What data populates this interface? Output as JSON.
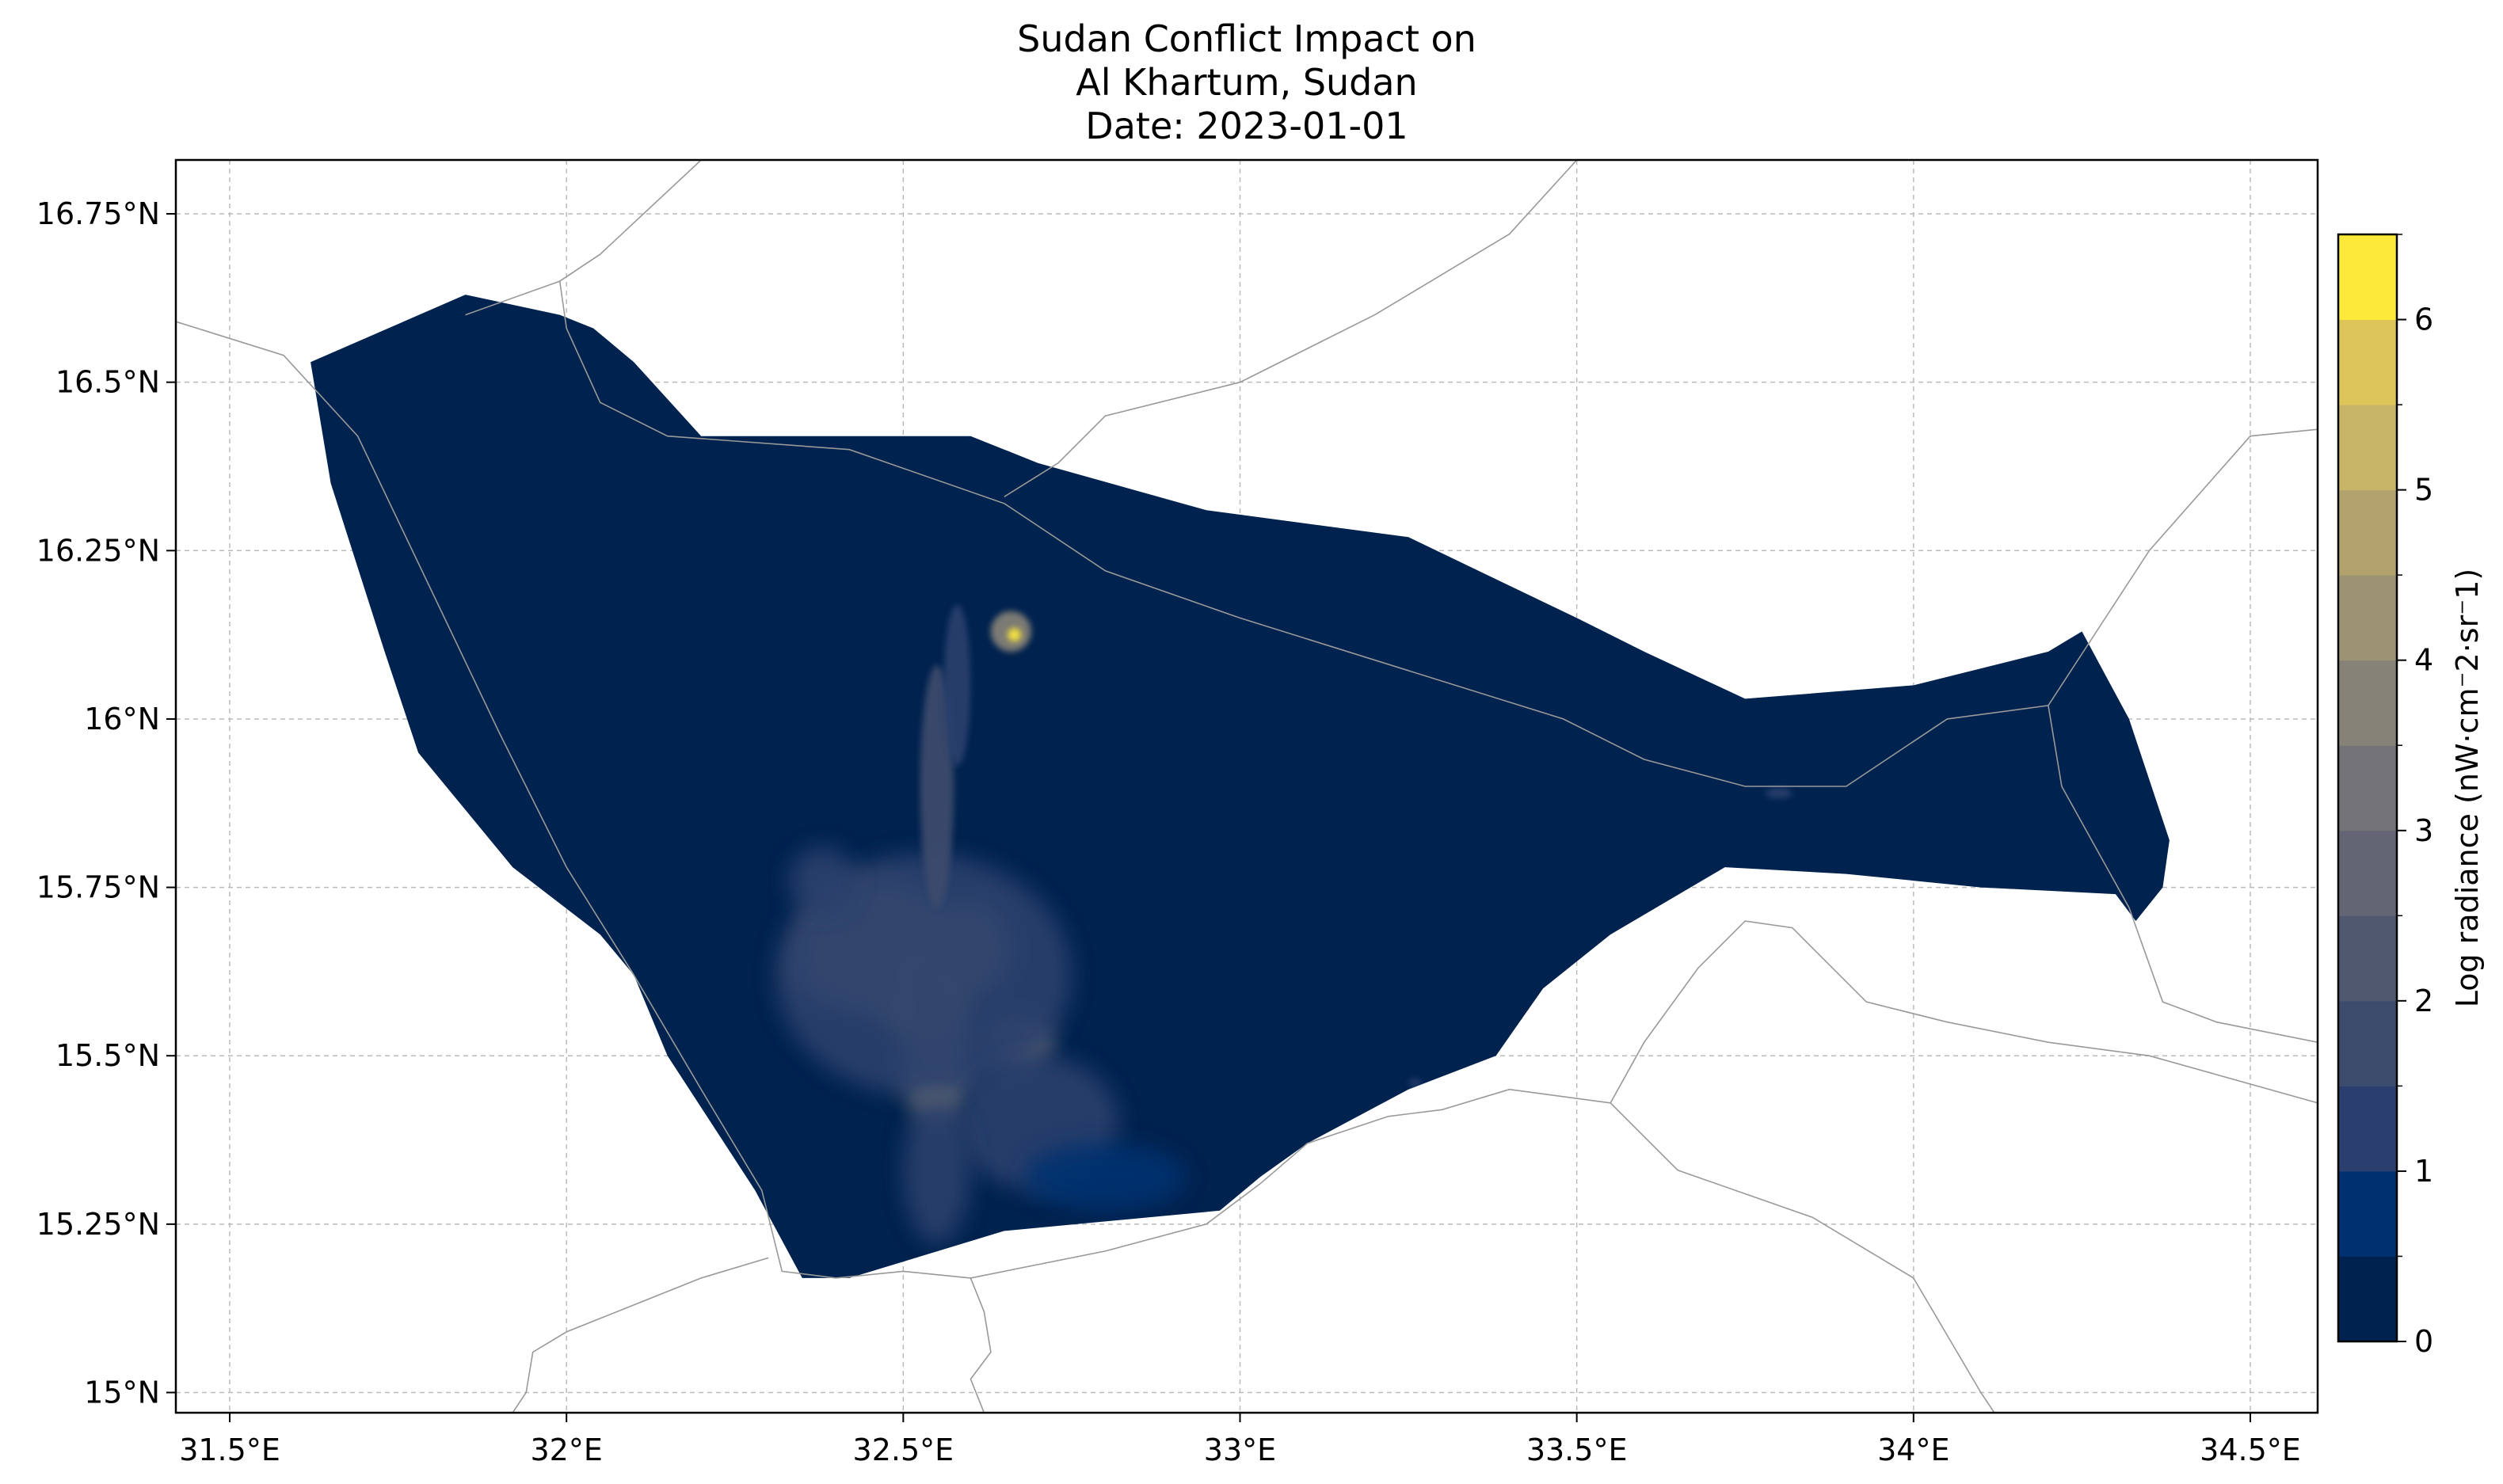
{
  "figure": {
    "title_lines": [
      "Sudan Conflict Impact on",
      "Al Khartum, Sudan",
      "Date: 2023-01-01"
    ]
  },
  "map": {
    "region": "Al Khartum, Sudan",
    "date": "2023-01-01",
    "lon_range": [
      31.42,
      34.6
    ],
    "lat_range": [
      14.97,
      16.83
    ],
    "grid": true,
    "x_ticks": [
      {
        "value": 31.5,
        "label": "31.5°E"
      },
      {
        "value": 32.0,
        "label": "32°E"
      },
      {
        "value": 32.5,
        "label": "32.5°E"
      },
      {
        "value": 33.0,
        "label": "33°E"
      },
      {
        "value": 33.5,
        "label": "33.5°E"
      },
      {
        "value": 34.0,
        "label": "34°E"
      },
      {
        "value": 34.5,
        "label": "34.5°E"
      }
    ],
    "y_ticks": [
      {
        "value": 16.75,
        "label": "16.75°N"
      },
      {
        "value": 16.5,
        "label": "16.5°N"
      },
      {
        "value": 16.25,
        "label": "16.25°N"
      },
      {
        "value": 16.0,
        "label": "16°N"
      },
      {
        "value": 15.75,
        "label": "15.75°N"
      },
      {
        "value": 15.5,
        "label": "15.5°N"
      },
      {
        "value": 15.25,
        "label": "15.25°N"
      },
      {
        "value": 15.0,
        "label": "15°N"
      }
    ],
    "colors": {
      "background_fill": "#00224e",
      "border_line": "#999999",
      "grid_line": "#bbbbbb"
    }
  },
  "colorbar": {
    "label": "Log radiance (nW·cm⁻2·sr⁻1)",
    "range": [
      0,
      6.5
    ],
    "ticks": [
      {
        "value": 0,
        "label": "0"
      },
      {
        "value": 1,
        "label": "1"
      },
      {
        "value": 2,
        "label": "2"
      },
      {
        "value": 3,
        "label": "3"
      },
      {
        "value": 4,
        "label": "4"
      },
      {
        "value": 5,
        "label": "5"
      },
      {
        "value": 6,
        "label": "6"
      }
    ],
    "bands": [
      {
        "min": 0.0,
        "max": 0.5,
        "color": "#00224e"
      },
      {
        "min": 0.5,
        "max": 1.0,
        "color": "#00306f"
      },
      {
        "min": 1.0,
        "max": 1.5,
        "color": "#2a3f6d"
      },
      {
        "min": 1.5,
        "max": 2.0,
        "color": "#3d4b6d"
      },
      {
        "min": 2.0,
        "max": 2.5,
        "color": "#4f586f"
      },
      {
        "min": 2.5,
        "max": 3.0,
        "color": "#636575"
      },
      {
        "min": 3.0,
        "max": 3.5,
        "color": "#737378"
      },
      {
        "min": 3.5,
        "max": 4.0,
        "color": "#878278"
      },
      {
        "min": 4.0,
        "max": 4.5,
        "color": "#9c9274"
      },
      {
        "min": 4.5,
        "max": 5.0,
        "color": "#b2a26d"
      },
      {
        "min": 5.0,
        "max": 5.5,
        "color": "#c8b466"
      },
      {
        "min": 5.5,
        "max": 6.0,
        "color": "#dec55a"
      },
      {
        "min": 6.0,
        "max": 6.5,
        "color": "#fde93a"
      }
    ]
  },
  "features": {
    "state_outline": [
      [
        31.62,
        16.53
      ],
      [
        31.85,
        16.63
      ],
      [
        31.99,
        16.6
      ],
      [
        32.04,
        16.58
      ],
      [
        32.1,
        16.53
      ],
      [
        32.2,
        16.42
      ],
      [
        32.6,
        16.42
      ],
      [
        32.7,
        16.38
      ],
      [
        32.95,
        16.31
      ],
      [
        33.25,
        16.27
      ],
      [
        33.5,
        16.15
      ],
      [
        33.6,
        16.1
      ],
      [
        33.75,
        16.03
      ],
      [
        34.0,
        16.05
      ],
      [
        34.2,
        16.1
      ],
      [
        34.25,
        16.13
      ],
      [
        34.32,
        16.0
      ],
      [
        34.38,
        15.82
      ],
      [
        34.37,
        15.75
      ],
      [
        34.33,
        15.7
      ],
      [
        34.3,
        15.74
      ],
      [
        34.1,
        15.75
      ],
      [
        33.9,
        15.77
      ],
      [
        33.72,
        15.78
      ],
      [
        33.55,
        15.68
      ],
      [
        33.45,
        15.6
      ],
      [
        33.38,
        15.5
      ],
      [
        33.25,
        15.45
      ],
      [
        33.1,
        15.37
      ],
      [
        33.03,
        15.32
      ],
      [
        32.97,
        15.27
      ],
      [
        32.65,
        15.24
      ],
      [
        32.42,
        15.17
      ],
      [
        32.35,
        15.17
      ],
      [
        32.28,
        15.3
      ],
      [
        32.15,
        15.5
      ],
      [
        32.1,
        15.62
      ],
      [
        32.05,
        15.68
      ],
      [
        31.92,
        15.78
      ],
      [
        31.78,
        15.95
      ],
      [
        31.73,
        16.1
      ],
      [
        31.65,
        16.35
      ]
    ],
    "borders": [
      [
        [
          31.42,
          16.59
        ],
        [
          31.58,
          16.54
        ],
        [
          31.69,
          16.42
        ],
        [
          31.9,
          15.98
        ],
        [
          32.0,
          15.78
        ],
        [
          32.1,
          15.62
        ],
        [
          32.2,
          15.45
        ],
        [
          32.29,
          15.3
        ],
        [
          32.32,
          15.18
        ],
        [
          32.4,
          15.17
        ],
        [
          32.5,
          15.18
        ],
        [
          32.6,
          15.17
        ],
        [
          32.8,
          15.21
        ],
        [
          32.95,
          15.25
        ],
        [
          33.03,
          15.31
        ],
        [
          33.1,
          15.37
        ],
        [
          33.22,
          15.41
        ],
        [
          33.3,
          15.42
        ],
        [
          33.4,
          15.45
        ],
        [
          33.55,
          15.43
        ],
        [
          33.6,
          15.52
        ],
        [
          33.68,
          15.63
        ],
        [
          33.75,
          15.7
        ],
        [
          33.82,
          15.69
        ],
        [
          33.93,
          15.58
        ],
        [
          34.05,
          15.55
        ],
        [
          34.2,
          15.52
        ],
        [
          34.35,
          15.5
        ],
        [
          34.6,
          15.43
        ]
      ],
      [
        [
          32.2,
          16.83
        ],
        [
          32.05,
          16.69
        ],
        [
          31.99,
          16.65
        ],
        [
          31.85,
          16.6
        ]
      ],
      [
        [
          31.99,
          16.65
        ],
        [
          32.0,
          16.58
        ],
        [
          32.05,
          16.47
        ],
        [
          32.15,
          16.42
        ],
        [
          32.42,
          16.4
        ],
        [
          32.65,
          16.32
        ],
        [
          32.8,
          16.22
        ],
        [
          33.0,
          16.15
        ],
        [
          33.48,
          16.0
        ],
        [
          33.6,
          15.94
        ],
        [
          33.75,
          15.9
        ],
        [
          33.9,
          15.9
        ],
        [
          34.05,
          16.0
        ],
        [
          34.2,
          16.02
        ],
        [
          34.35,
          16.25
        ],
        [
          34.5,
          16.42
        ],
        [
          34.6,
          16.43
        ]
      ],
      [
        [
          32.3,
          15.2
        ],
        [
          32.2,
          15.17
        ],
        [
          32.1,
          15.13
        ],
        [
          32.0,
          15.09
        ],
        [
          31.95,
          15.06
        ],
        [
          31.94,
          15.0
        ],
        [
          31.92,
          14.97
        ]
      ],
      [
        [
          32.6,
          15.17
        ],
        [
          32.62,
          15.12
        ],
        [
          32.63,
          15.06
        ],
        [
          32.6,
          15.02
        ],
        [
          32.62,
          14.97
        ]
      ],
      [
        [
          33.55,
          15.43
        ],
        [
          33.65,
          15.33
        ],
        [
          33.85,
          15.26
        ],
        [
          34.0,
          15.17
        ],
        [
          34.1,
          15.0
        ],
        [
          34.12,
          14.97
        ]
      ],
      [
        [
          34.2,
          16.02
        ],
        [
          34.22,
          15.9
        ],
        [
          34.32,
          15.72
        ],
        [
          34.37,
          15.58
        ],
        [
          34.45,
          15.55
        ],
        [
          34.6,
          15.52
        ]
      ],
      [
        [
          32.65,
          16.33
        ],
        [
          32.73,
          16.38
        ],
        [
          32.8,
          16.45
        ],
        [
          33.0,
          16.5
        ],
        [
          33.2,
          16.6
        ],
        [
          33.4,
          16.72
        ],
        [
          33.5,
          16.83
        ]
      ]
    ],
    "light_blobs": [
      {
        "lon": 32.53,
        "lat": 15.6,
        "rx": 0.07,
        "ry": 0.08,
        "level": 5.5
      },
      {
        "lon": 32.47,
        "lat": 15.66,
        "rx": 0.12,
        "ry": 0.1,
        "level": 4.3
      },
      {
        "lon": 32.6,
        "lat": 15.66,
        "rx": 0.06,
        "ry": 0.07,
        "level": 4.3
      },
      {
        "lon": 32.55,
        "lat": 15.5,
        "rx": 0.05,
        "ry": 0.1,
        "level": 3.8
      },
      {
        "lon": 32.4,
        "lat": 15.63,
        "rx": 0.06,
        "ry": 0.05,
        "level": 3.8
      },
      {
        "lon": 32.67,
        "lat": 15.52,
        "rx": 0.05,
        "ry": 0.04,
        "level": 3.2
      },
      {
        "lon": 32.53,
        "lat": 15.62,
        "rx": 0.22,
        "ry": 0.18,
        "level": 1.3
      },
      {
        "lon": 32.7,
        "lat": 15.4,
        "rx": 0.12,
        "ry": 0.1,
        "level": 1.1
      },
      {
        "lon": 32.8,
        "lat": 15.32,
        "rx": 0.12,
        "ry": 0.05,
        "level": 0.9
      },
      {
        "lon": 32.55,
        "lat": 15.33,
        "rx": 0.05,
        "ry": 0.11,
        "level": 1.2
      },
      {
        "lon": 32.55,
        "lat": 15.9,
        "rx": 0.025,
        "ry": 0.18,
        "level": 1.6
      },
      {
        "lon": 32.58,
        "lat": 16.05,
        "rx": 0.02,
        "ry": 0.12,
        "level": 1.1
      },
      {
        "lon": 32.66,
        "lat": 16.13,
        "rx": 0.03,
        "ry": 0.03,
        "level": 3.5
      },
      {
        "lon": 32.665,
        "lat": 16.125,
        "rx": 0.01,
        "ry": 0.01,
        "level": 6.2
      },
      {
        "lon": 32.38,
        "lat": 15.76,
        "rx": 0.05,
        "ry": 0.05,
        "level": 1.0
      },
      {
        "lon": 33.8,
        "lat": 15.89,
        "rx": 0.02,
        "ry": 0.008,
        "level": 1.0
      },
      {
        "lon": 33.26,
        "lat": 15.46,
        "rx": 0.01,
        "ry": 0.006,
        "level": 1.0
      }
    ]
  }
}
